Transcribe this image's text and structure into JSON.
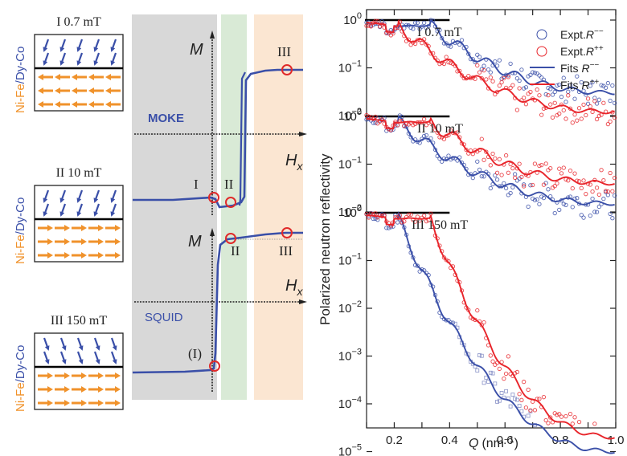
{
  "colors": {
    "blue": "#3a4fa8",
    "red": "#e8242a",
    "orange": "#f0922b",
    "gray_band": "#d8d8d8",
    "green_band": "#d9ead6",
    "peach_band": "#fbe6d2",
    "circle_marker": "#e02a2a"
  },
  "schematics": [
    {
      "label": "I 0.7 mT",
      "material_a": "Ni-Fe",
      "separator": "/",
      "material_b": "Dy-Co",
      "top_arrow_dir": "down-left",
      "bottom_arrow_dir": "left"
    },
    {
      "label": "II 10 mT",
      "material_a": "Ni-Fe",
      "separator": "/",
      "material_b": "Dy-Co",
      "top_arrow_dir": "down-left",
      "bottom_arrow_dir": "right"
    },
    {
      "label": "III 150 mT",
      "material_a": "Ni-Fe",
      "separator": "/",
      "material_b": "Dy-Co",
      "top_arrow_dir": "down-right",
      "bottom_arrow_dir": "right"
    }
  ],
  "loops": {
    "moke": {
      "method": "MOKE",
      "y_axis": "M",
      "x_axis": "H",
      "x_axis_sub": "x",
      "points": [
        "I",
        "II",
        "III"
      ]
    },
    "squid": {
      "method": "SQUID",
      "y_axis": "M",
      "x_axis": "H",
      "x_axis_sub": "x",
      "points": [
        "(I)",
        "II",
        "III"
      ]
    }
  },
  "chart_data": {
    "type": "scatter",
    "title": "",
    "xlabel": "Q (nm⁻¹)",
    "xlabel_var": "Q",
    "xlabel_unit": "(nm⁻¹)",
    "ylabel": "Polarized neutron reflectivity",
    "xlim": [
      0.1,
      1.0
    ],
    "x_ticks": [
      0.2,
      0.4,
      0.6,
      0.8,
      1.0
    ],
    "x_tick_labels": [
      "0.2",
      "0.4",
      "0.6",
      "0.8",
      "1.0"
    ],
    "y_scale": "log",
    "offset_panels": [
      {
        "label": "I 0.7 mT",
        "y_tick_labels": [
          "10⁰",
          "10⁻¹",
          "10⁻²"
        ],
        "y_ticks": [
          1,
          0.1,
          0.01
        ]
      },
      {
        "label": "II 10 mT",
        "y_tick_labels": [
          "10⁰",
          "10⁻¹",
          "10⁻²"
        ],
        "y_ticks": [
          1,
          0.1,
          0.01
        ]
      },
      {
        "label": "III 150 mT",
        "y_tick_labels": [
          "10⁰",
          "10⁻¹",
          "10⁻²",
          "10⁻³",
          "10⁻⁴",
          "10⁻⁵"
        ],
        "y_ticks": [
          1,
          0.1,
          0.01,
          0.001,
          0.0001,
          1e-05
        ]
      }
    ],
    "legend": {
      "position": "top-right",
      "entries": [
        {
          "name": "Expt. R⁻⁻",
          "text": "Expt.",
          "var": "R",
          "sup": "−−",
          "kind": "marker",
          "color": "#3a4fa8"
        },
        {
          "name": "Expt. R⁺⁺",
          "text": "Expt.",
          "var": "R",
          "sup": "++",
          "kind": "marker",
          "color": "#e8242a"
        },
        {
          "name": "Fits R⁻⁻",
          "text": "Fits ",
          "var": "R",
          "sup": "−−",
          "kind": "line",
          "color": "#3a4fa8"
        },
        {
          "name": "Fits R⁺⁺",
          "text": "Fits ",
          "var": "R",
          "sup": "++",
          "kind": "line",
          "color": "#e8242a"
        }
      ]
    },
    "series_summary": [
      {
        "panel": "I 0.7 mT",
        "series": "R--",
        "critical_edge_Q": 0.33,
        "R_at_Q_1.0": 0.03
      },
      {
        "panel": "I 0.7 mT",
        "series": "R++",
        "critical_edge_Q": 0.22,
        "R_at_Q_1.0": 0.012
      },
      {
        "panel": "II 10 mT",
        "series": "R--",
        "critical_edge_Q": 0.22,
        "R_at_Q_1.0": 0.015
      },
      {
        "panel": "II 10 mT",
        "series": "R++",
        "critical_edge_Q": 0.33,
        "R_at_Q_1.0": 0.04
      },
      {
        "panel": "III 150 mT",
        "series": "R--",
        "critical_edge_Q": 0.22,
        "R_at_Q_1.0": 1e-05
      },
      {
        "panel": "III 150 mT",
        "series": "R++",
        "critical_edge_Q": 0.33,
        "R_at_Q_1.0": 2e-05
      }
    ]
  }
}
